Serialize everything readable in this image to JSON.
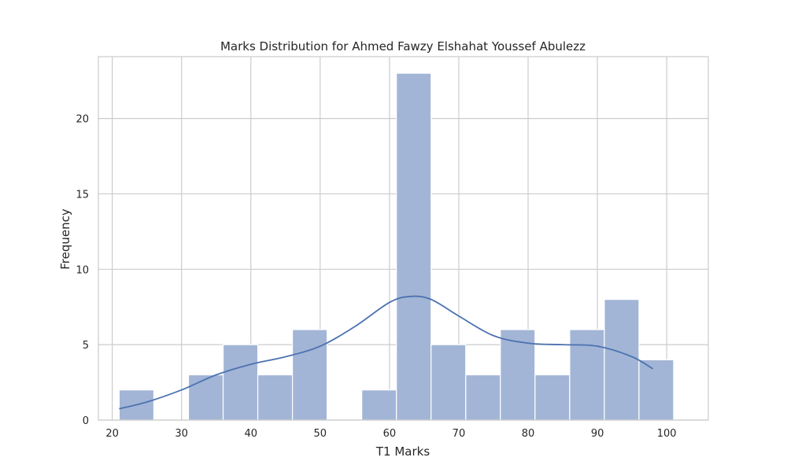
{
  "chart_data": {
    "type": "bar",
    "title": "Marks Distribution for Ahmed Fawzy Elshahat Youssef Abulezz",
    "xlabel": "T1 Marks",
    "ylabel": "Frequency",
    "xlim": [
      18,
      106
    ],
    "ylim": [
      0,
      24.1
    ],
    "x_ticks": [
      20,
      30,
      40,
      50,
      60,
      70,
      80,
      90,
      100
    ],
    "y_ticks": [
      0,
      5,
      10,
      15,
      20
    ],
    "grid": true,
    "bins": [
      {
        "start": 21,
        "end": 26,
        "count": 2
      },
      {
        "start": 26,
        "end": 31,
        "count": 0
      },
      {
        "start": 31,
        "end": 36,
        "count": 3
      },
      {
        "start": 36,
        "end": 41,
        "count": 5
      },
      {
        "start": 41,
        "end": 46,
        "count": 3
      },
      {
        "start": 46,
        "end": 51,
        "count": 6
      },
      {
        "start": 51,
        "end": 56,
        "count": 0
      },
      {
        "start": 56,
        "end": 61,
        "count": 2
      },
      {
        "start": 61,
        "end": 66,
        "count": 23
      },
      {
        "start": 66,
        "end": 71,
        "count": 5
      },
      {
        "start": 71,
        "end": 76,
        "count": 3
      },
      {
        "start": 76,
        "end": 81,
        "count": 6
      },
      {
        "start": 81,
        "end": 86,
        "count": 3
      },
      {
        "start": 86,
        "end": 91,
        "count": 6
      },
      {
        "start": 91,
        "end": 96,
        "count": 8
      },
      {
        "start": 96,
        "end": 101,
        "count": 4
      }
    ],
    "kde": {
      "x": [
        21,
        25,
        30,
        35,
        40,
        45,
        50,
        55,
        60,
        63,
        66,
        70,
        75,
        80,
        85,
        90,
        95,
        98
      ],
      "y": [
        0.75,
        1.2,
        2.0,
        3.0,
        3.7,
        4.2,
        4.9,
        6.2,
        7.8,
        8.2,
        8.0,
        6.9,
        5.6,
        5.1,
        5.0,
        4.9,
        4.2,
        3.4
      ]
    },
    "colors": {
      "bar_fill": "#a2b5d6",
      "bar_stroke": "#ffffff",
      "kde_line": "#4c72b0",
      "grid": "#cccccc",
      "frame": "#cccccc"
    }
  }
}
